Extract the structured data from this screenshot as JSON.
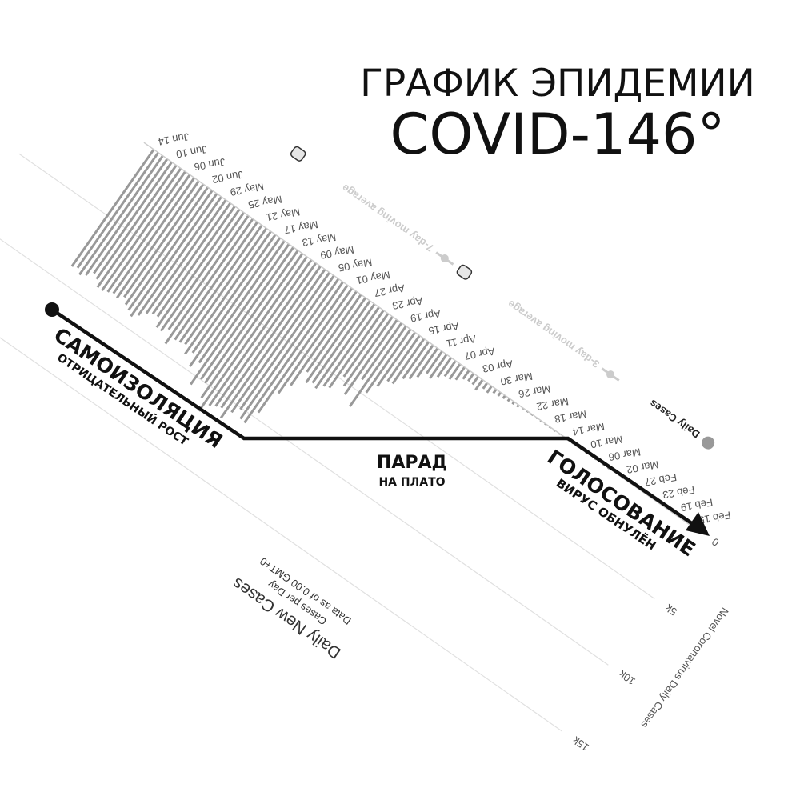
{
  "title": {
    "line1": "ГРАФИК ЭПИДЕМИИ",
    "line2": "COVID-146°"
  },
  "overlay": {
    "stage1": {
      "title": "САМОИЗОЛЯЦИЯ",
      "subtitle": "ОТРИЦАТЕЛЬНЫЙ РОСТ"
    },
    "stage2": {
      "title": "ПАРАД",
      "subtitle": "НА ПЛАТО"
    },
    "stage3": {
      "title": "ГОЛОСОВАНИЕ",
      "subtitle": "ВИРУС ОБНУЛЁН"
    },
    "line_color": "#111111"
  },
  "chart_data": {
    "type": "bar",
    "title": "Daily New Cases",
    "subtitle": "Cases per Day",
    "note": "Data as of 0:00 GMT+0",
    "ylabel": "Novel Coronavirus Daily Cases",
    "ylim": [
      0,
      15000
    ],
    "grid": true,
    "rotation_deg": 215,
    "bar_color": "#999999",
    "yticks": [
      {
        "v": 0,
        "label": "0"
      },
      {
        "v": 5000,
        "label": "5k"
      },
      {
        "v": 10000,
        "label": "10k"
      },
      {
        "v": 15000,
        "label": "15k"
      }
    ],
    "xtick_labels": [
      "Feb 15",
      "Feb 19",
      "Feb 23",
      "Feb 27",
      "Mar 02",
      "Mar 06",
      "Mar 10",
      "Mar 14",
      "Mar 18",
      "Mar 22",
      "Mar 26",
      "Mar 30",
      "Apr 03",
      "Apr 07",
      "Apr 11",
      "Apr 15",
      "Apr 19",
      "Apr 23",
      "Apr 27",
      "May 01",
      "May 05",
      "May 09",
      "May 13",
      "May 17",
      "May 21",
      "May 25",
      "May 29",
      "Jun 02",
      "Jun 06",
      "Jun 10",
      "Jun 14"
    ],
    "legend": {
      "placement": "bottom",
      "items": [
        {
          "label": "Daily Cases",
          "color": "#999999",
          "active": true
        },
        {
          "label": "3-day moving average",
          "color": "#cccccc",
          "active": false
        },
        {
          "label": "7-day moving average",
          "color": "#cccccc",
          "active": false
        }
      ]
    },
    "x": [
      "Feb 15",
      "Feb 16",
      "Feb 17",
      "Feb 18",
      "Feb 19",
      "Feb 20",
      "Feb 21",
      "Feb 22",
      "Feb 23",
      "Feb 24",
      "Feb 25",
      "Feb 26",
      "Feb 27",
      "Feb 28",
      "Feb 29",
      "Mar 01",
      "Mar 02",
      "Mar 03",
      "Mar 04",
      "Mar 05",
      "Mar 06",
      "Mar 07",
      "Mar 08",
      "Mar 09",
      "Mar 10",
      "Mar 11",
      "Mar 12",
      "Mar 13",
      "Mar 14",
      "Mar 15",
      "Mar 16",
      "Mar 17",
      "Mar 18",
      "Mar 19",
      "Mar 20",
      "Mar 21",
      "Mar 22",
      "Mar 23",
      "Mar 24",
      "Mar 25",
      "Mar 26",
      "Mar 27",
      "Mar 28",
      "Mar 29",
      "Mar 30",
      "Mar 31",
      "Apr 01",
      "Apr 02",
      "Apr 03",
      "Apr 04",
      "Apr 05",
      "Apr 06",
      "Apr 07",
      "Apr 08",
      "Apr 09",
      "Apr 10",
      "Apr 11",
      "Apr 12",
      "Apr 13",
      "Apr 14",
      "Apr 15",
      "Apr 16",
      "Apr 17",
      "Apr 18",
      "Apr 19",
      "Apr 20",
      "Apr 21",
      "Apr 22",
      "Apr 23",
      "Apr 24",
      "Apr 25",
      "Apr 26",
      "Apr 27",
      "Apr 28",
      "Apr 29",
      "Apr 30",
      "May 01",
      "May 02",
      "May 03",
      "May 04",
      "May 05",
      "May 06",
      "May 07",
      "May 08",
      "May 09",
      "May 10",
      "May 11",
      "May 12",
      "May 13",
      "May 14",
      "May 15",
      "May 16",
      "May 17",
      "May 18",
      "May 19",
      "May 20",
      "May 21",
      "May 22",
      "May 23",
      "May 24",
      "May 25",
      "May 26",
      "May 27",
      "May 28",
      "May 29",
      "May 30",
      "May 31",
      "Jun 01",
      "Jun 02",
      "Jun 03",
      "Jun 04",
      "Jun 05",
      "Jun 06",
      "Jun 07",
      "Jun 08",
      "Jun 09",
      "Jun 10",
      "Jun 11",
      "Jun 12",
      "Jun 13",
      "Jun 14"
    ],
    "values": [
      0,
      0,
      0,
      0,
      0,
      0,
      0,
      0,
      0,
      0,
      0,
      0,
      0,
      0,
      0,
      0,
      1,
      0,
      0,
      1,
      6,
      0,
      3,
      0,
      3,
      7,
      6,
      17,
      14,
      4,
      30,
      21,
      33,
      52,
      54,
      53,
      61,
      71,
      57,
      163,
      182,
      196,
      228,
      270,
      302,
      501,
      440,
      771,
      601,
      582,
      658,
      954,
      1154,
      1175,
      1459,
      1786,
      1667,
      2186,
      2558,
      2774,
      3388,
      3448,
      4070,
      4785,
      6060,
      4268,
      5642,
      5236,
      4774,
      5849,
      5966,
      6361,
      6198,
      6411,
      5841,
      7099,
      7933,
      9623,
      10633,
      10581,
      10102,
      10559,
      11231,
      10699,
      10817,
      11012,
      11656,
      10899,
      10028,
      9974,
      10598,
      9200,
      9709,
      8926,
      9263,
      8764,
      8849,
      8894,
      9434,
      8599,
      8946,
      8915,
      8338,
      8371,
      8572,
      8952,
      9268,
      9035,
      8863,
      8536,
      8831,
      8726,
      8855,
      8984,
      8985,
      8595,
      8404,
      8779,
      8987,
      8706,
      8835
    ]
  }
}
